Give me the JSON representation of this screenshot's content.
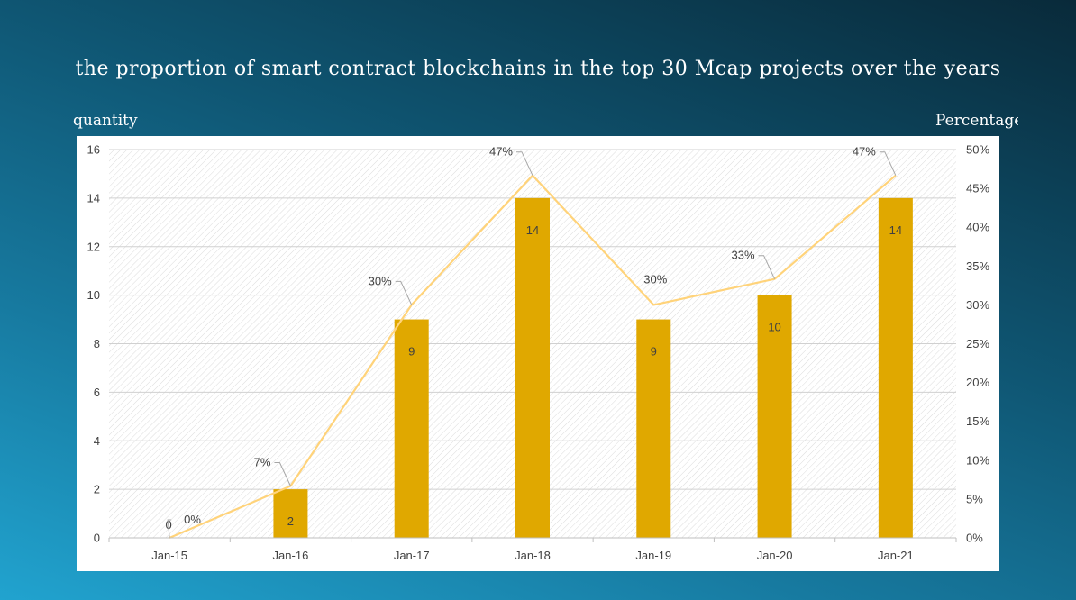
{
  "slide": {
    "title": "the proportion of smart contract blockchains in the top 30 Mcap projects over the years",
    "left_axis_name": "quantity",
    "right_axis_name": "Percentage"
  },
  "chart_data": {
    "type": "bar",
    "combo": "bar + line (secondary axis)",
    "categories": [
      "Jan-15",
      "Jan-16",
      "Jan-17",
      "Jan-18",
      "Jan-19",
      "Jan-20",
      "Jan-21"
    ],
    "series": [
      {
        "type": "bar",
        "axis": "left",
        "values": [
          0,
          2,
          9,
          14,
          9,
          10,
          14
        ],
        "labels": [
          "0",
          "2",
          "9",
          "14",
          "9",
          "10",
          "14"
        ],
        "color": "#e0a800"
      },
      {
        "type": "line",
        "axis": "right",
        "values": [
          0,
          6.67,
          30,
          46.67,
          30,
          33.33,
          46.67
        ],
        "labels": [
          "0%",
          "7%",
          "30%",
          "47%",
          "30%",
          "33%",
          "47%"
        ],
        "color": "#ffd37a"
      }
    ],
    "ylim_left": [
      0,
      16
    ],
    "yticks_left": [
      "0",
      "2",
      "4",
      "6",
      "8",
      "10",
      "12",
      "14",
      "16"
    ],
    "ylim_right": [
      0,
      50
    ],
    "yticks_right": [
      "0%",
      "5%",
      "10%",
      "15%",
      "20%",
      "25%",
      "30%",
      "35%",
      "40%",
      "45%",
      "50%"
    ],
    "grid": true,
    "legend": "none"
  }
}
